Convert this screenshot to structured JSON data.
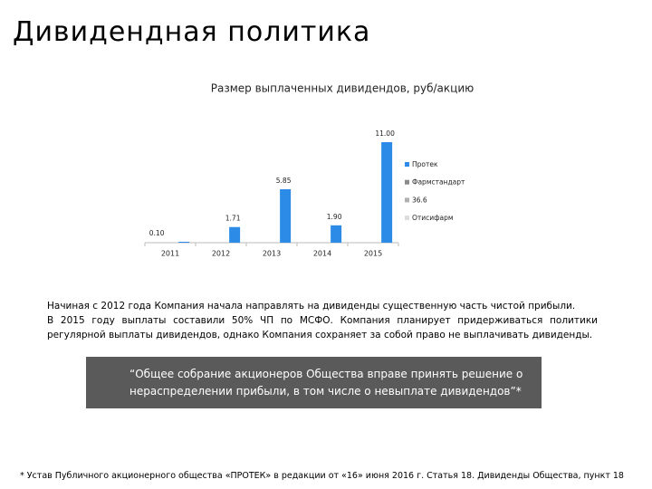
{
  "title": "Дивидендная политика",
  "chart_data": {
    "type": "bar",
    "title": "Размер выплаченных дивидендов, руб/акцию",
    "categories": [
      "2011",
      "2012",
      "2013",
      "2014",
      "2015"
    ],
    "series": [
      {
        "name": "Протек",
        "color": "#2b8be6",
        "values": [
          0.1,
          1.71,
          5.85,
          1.9,
          11.0
        ],
        "value_labels": [
          "0.10",
          "1.71",
          "5.85",
          "1.90",
          "11.00"
        ]
      },
      {
        "name": "Фармстандарт",
        "color": "#8a8a8a",
        "values": [
          null,
          null,
          null,
          null,
          null
        ]
      },
      {
        "name": "36.6",
        "color": "#b0b0b0",
        "values": [
          null,
          null,
          null,
          null,
          null
        ]
      },
      {
        "name": "Отисифарм",
        "color": "#dcdcdc",
        "values": [
          null,
          null,
          null,
          null,
          null
        ]
      }
    ]
  },
  "text": {
    "paragraph_1": "Начиная с 2012 года Компания начала направлять на дивиденды существенную часть чистой прибыли.",
    "paragraph_2": "В 2015 году выплаты составили 50% ЧП по МСФО. Компания планирует придерживаться политики регулярной выплаты дивидендов, однако Компания сохраняет за собой право не выплачивать дивиденды."
  },
  "quote": "“Общее собрание акционеров Общества вправе принять решение о нераспределении прибыли, в том числе о невыплате дивидендов”*",
  "footnote": "* Устав Публичного акционерного общества «ПРОТЕК» в редакции от «16» июня 2016 г. Статья 18. Дивиденды Общества, пункт 18"
}
